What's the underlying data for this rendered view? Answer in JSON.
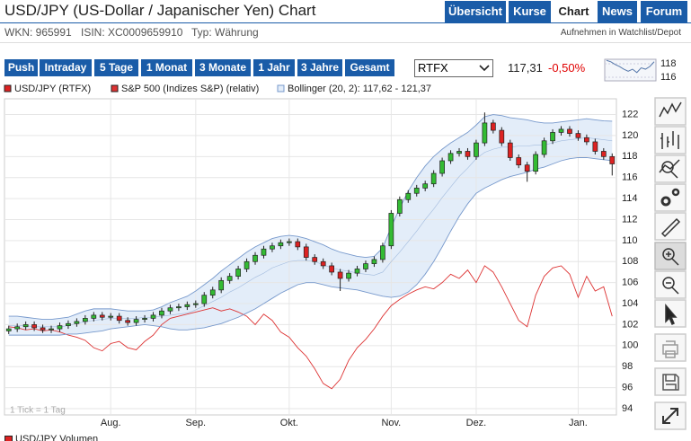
{
  "header": {
    "title": "USD/JPY (US-Dollar / Japanischer Yen) Chart",
    "tabs": [
      "Übersicht",
      "Kurse",
      "Chart",
      "News",
      "Forum"
    ],
    "active_tab": 2,
    "info": [
      "WKN: 965991",
      "ISIN: XC0009659910",
      "Typ: Währung"
    ],
    "watchlist": "Aufnehmen in Watchlist/Depot"
  },
  "toolbar": {
    "periods": [
      "Push",
      "Intraday",
      "5 Tage",
      "1 Monat",
      "3 Monate",
      "1 Jahr",
      "3 Jahre",
      "Gesamt"
    ],
    "exchange": "RTFX",
    "price": "117,31",
    "change": "-0,50%",
    "change_color": "#e00000"
  },
  "mini_chart": {
    "type": "line",
    "values": [
      118.5,
      118.3,
      117.9,
      117.6,
      117.2,
      116.9,
      117.2,
      116.7,
      117.4,
      117.2,
      117.6,
      118.3
    ],
    "color": "#5577aa",
    "ylim": [
      115.47,
      118.67
    ],
    "yticks": [
      118,
      116
    ]
  },
  "chart_data": {
    "type": "candlestick",
    "name": "USD/JPY (RTFX)",
    "up_color": "#33bb33",
    "down_color": "#dd2222",
    "categories": [
      null,
      null,
      null,
      null,
      null,
      null,
      null,
      null,
      null,
      null,
      null,
      null,
      "Aug.",
      null,
      null,
      null,
      null,
      null,
      null,
      null,
      null,
      null,
      "Sep.",
      null,
      null,
      null,
      null,
      null,
      null,
      null,
      null,
      null,
      null,
      "Okt.",
      null,
      null,
      null,
      null,
      null,
      null,
      null,
      null,
      null,
      null,
      null,
      "Nov.",
      null,
      null,
      null,
      null,
      null,
      null,
      null,
      null,
      null,
      "Dez.",
      null,
      null,
      null,
      null,
      null,
      null,
      null,
      null,
      null,
      null,
      null,
      "Jan.",
      null,
      null,
      null,
      null
    ],
    "open": [
      101.4,
      101.6,
      101.8,
      102.0,
      101.7,
      101.5,
      101.6,
      101.9,
      102.1,
      102.3,
      102.6,
      102.9,
      102.7,
      102.8,
      102.4,
      102.2,
      102.5,
      102.6,
      102.9,
      103.3,
      103.6,
      103.7,
      103.9,
      104.0,
      104.8,
      105.3,
      106.2,
      106.6,
      107.3,
      108.0,
      108.6,
      109.2,
      109.5,
      109.8,
      109.9,
      109.4,
      108.4,
      108.0,
      107.6,
      107.0,
      106.4,
      106.9,
      107.3,
      107.8,
      108.2,
      109.5,
      112.6,
      113.9,
      114.5,
      115.0,
      115.4,
      116.4,
      117.6,
      118.3,
      118.5,
      118.0,
      119.3,
      121.2,
      120.5,
      119.3,
      117.9,
      117.2,
      116.6,
      118.2,
      119.5,
      120.3,
      120.6,
      120.2,
      119.8,
      119.4,
      118.5,
      118.0
    ],
    "high": [
      101.9,
      102.1,
      102.3,
      102.3,
      102.0,
      101.9,
      102.2,
      102.4,
      102.6,
      102.9,
      103.2,
      103.2,
      103.1,
      103.1,
      102.7,
      102.8,
      102.9,
      103.2,
      103.6,
      103.9,
      104.0,
      104.2,
      104.3,
      105.1,
      105.6,
      106.5,
      106.9,
      107.6,
      108.3,
      108.9,
      109.5,
      109.8,
      110.1,
      110.2,
      110.2,
      109.7,
      108.7,
      108.3,
      107.9,
      107.3,
      107.2,
      107.6,
      108.1,
      108.5,
      109.8,
      112.9,
      114.2,
      114.8,
      115.3,
      115.7,
      116.7,
      117.9,
      118.6,
      118.8,
      118.8,
      119.6,
      122.2,
      121.5,
      120.8,
      119.6,
      118.2,
      117.5,
      118.5,
      119.8,
      120.6,
      120.9,
      120.9,
      120.5,
      120.1,
      119.7,
      118.8,
      118.3
    ],
    "low": [
      101.1,
      101.3,
      101.5,
      101.4,
      101.2,
      101.2,
      101.3,
      101.6,
      101.8,
      102.0,
      102.3,
      102.4,
      102.4,
      102.1,
      101.9,
      101.9,
      102.2,
      102.3,
      102.6,
      103.0,
      103.3,
      103.4,
      103.6,
      103.7,
      104.5,
      105.0,
      105.9,
      106.3,
      107.0,
      107.7,
      108.3,
      108.9,
      109.2,
      109.5,
      109.1,
      108.1,
      107.7,
      107.3,
      106.7,
      105.2,
      106.1,
      106.6,
      107.0,
      107.5,
      107.9,
      109.2,
      112.3,
      113.6,
      114.2,
      114.7,
      115.1,
      116.1,
      117.3,
      118.0,
      117.7,
      117.7,
      119.0,
      120.2,
      119.0,
      117.6,
      116.9,
      115.6,
      116.3,
      117.9,
      119.2,
      120.0,
      119.9,
      119.5,
      119.1,
      118.2,
      117.7,
      116.2
    ],
    "close": [
      101.6,
      101.8,
      102.0,
      101.7,
      101.5,
      101.6,
      101.9,
      102.1,
      102.3,
      102.6,
      102.9,
      102.7,
      102.8,
      102.4,
      102.2,
      102.5,
      102.6,
      102.9,
      103.3,
      103.6,
      103.7,
      103.9,
      104.0,
      104.8,
      105.3,
      106.2,
      106.6,
      107.3,
      108.0,
      108.6,
      109.2,
      109.5,
      109.8,
      109.9,
      109.4,
      108.4,
      108.0,
      107.6,
      107.0,
      106.4,
      106.9,
      107.3,
      107.8,
      108.2,
      109.5,
      112.6,
      113.9,
      114.5,
      115.0,
      115.4,
      116.4,
      117.6,
      118.3,
      118.5,
      118.0,
      119.3,
      121.2,
      120.5,
      119.3,
      117.9,
      117.2,
      116.6,
      118.2,
      119.5,
      120.3,
      120.6,
      120.2,
      119.8,
      119.4,
      118.5,
      118.0,
      117.3
    ],
    "overlays": [
      {
        "name": "S&P 500 (Indizes S&P) (relativ)",
        "color": "#dd3333",
        "values": [
          101.8,
          101.7,
          101.5,
          101.6,
          101.4,
          101.5,
          101.3,
          101.0,
          100.8,
          100.5,
          99.8,
          99.5,
          100.2,
          100.4,
          99.8,
          99.6,
          100.4,
          101.0,
          102.0,
          102.6,
          102.8,
          103.0,
          103.2,
          103.4,
          103.6,
          103.3,
          103.5,
          103.2,
          102.8,
          102.0,
          103.0,
          102.4,
          101.3,
          100.8,
          99.8,
          99.0,
          97.8,
          96.4,
          95.9,
          96.8,
          98.6,
          99.8,
          100.6,
          101.6,
          102.8,
          103.8,
          104.4,
          104.9,
          105.3,
          105.6,
          105.4,
          106.0,
          106.8,
          106.4,
          107.2,
          106.0,
          107.6,
          107.0,
          105.6,
          104.0,
          102.4,
          101.8,
          104.8,
          106.6,
          107.4,
          107.6,
          106.8,
          104.6,
          106.6,
          105.2,
          105.6,
          102.8
        ]
      }
    ],
    "bollinger": {
      "name": "Bollinger (20, 2): 117,62 - 121,37",
      "color": "#7799cc",
      "fill": "#e3edf9",
      "upper": [
        102.8,
        102.8,
        102.7,
        102.6,
        102.5,
        102.5,
        102.6,
        102.7,
        103.0,
        103.3,
        103.5,
        103.5,
        103.5,
        103.4,
        103.3,
        103.3,
        103.3,
        103.4,
        103.7,
        104.1,
        104.4,
        104.7,
        105.2,
        105.8,
        106.4,
        107.1,
        107.7,
        108.3,
        108.9,
        109.4,
        109.8,
        110.2,
        110.4,
        110.5,
        110.4,
        110.2,
        109.9,
        109.6,
        109.2,
        108.9,
        108.7,
        108.5,
        108.4,
        108.5,
        109.3,
        111.3,
        113.1,
        114.7,
        116.0,
        117.1,
        118.0,
        118.7,
        119.3,
        119.8,
        120.3,
        121.0,
        121.8,
        122.0,
        121.9,
        121.7,
        121.6,
        121.5,
        121.3,
        121.2,
        121.2,
        121.3,
        121.4,
        121.5,
        121.6,
        121.5,
        121.4,
        121.37
      ],
      "middle": [
        101.9,
        101.9,
        101.9,
        101.8,
        101.8,
        101.8,
        101.8,
        101.9,
        102.1,
        102.3,
        102.4,
        102.5,
        102.6,
        102.6,
        102.6,
        102.6,
        102.7,
        102.7,
        102.8,
        102.9,
        103.0,
        103.1,
        103.4,
        103.8,
        104.2,
        104.6,
        105.1,
        105.5,
        106.0,
        106.5,
        106.9,
        107.4,
        107.7,
        108.0,
        108.1,
        108.1,
        108.0,
        107.7,
        107.4,
        107.2,
        107.1,
        106.9,
        106.8,
        106.7,
        107.0,
        108.0,
        108.9,
        109.9,
        110.9,
        112.0,
        113.0,
        114.1,
        115.1,
        116.1,
        116.9,
        117.8,
        118.4,
        118.7,
        118.9,
        118.9,
        119.0,
        119.0,
        119.1,
        119.1,
        119.3,
        119.5,
        119.6,
        119.7,
        119.8,
        119.7,
        119.6,
        119.5
      ],
      "lower": [
        101.0,
        101.0,
        101.0,
        101.0,
        101.0,
        101.0,
        101.0,
        101.1,
        101.1,
        101.2,
        101.3,
        101.4,
        101.6,
        101.7,
        101.8,
        101.9,
        102.0,
        101.9,
        101.8,
        101.6,
        101.5,
        101.5,
        101.6,
        101.7,
        101.9,
        102.1,
        102.4,
        102.7,
        103.1,
        103.5,
        104.0,
        104.5,
        105.0,
        105.4,
        105.8,
        106.0,
        106.0,
        105.8,
        105.6,
        105.5,
        105.4,
        105.3,
        105.1,
        104.9,
        104.7,
        104.6,
        104.7,
        105.1,
        105.8,
        106.8,
        108.0,
        109.4,
        110.9,
        112.3,
        113.5,
        114.5,
        115.0,
        115.4,
        115.8,
        116.1,
        116.3,
        116.5,
        116.8,
        117.0,
        117.3,
        117.6,
        117.8,
        117.9,
        117.9,
        117.8,
        117.7,
        117.62
      ]
    },
    "ylim": [
      93.4,
      123.5
    ],
    "yticks": [
      94,
      96,
      98,
      100,
      102,
      104,
      106,
      108,
      110,
      112,
      114,
      116,
      118,
      120,
      122
    ],
    "grid": true,
    "note": "1 Tick = 1 Tag"
  },
  "volume_legend": "USD/JPY Volumen"
}
